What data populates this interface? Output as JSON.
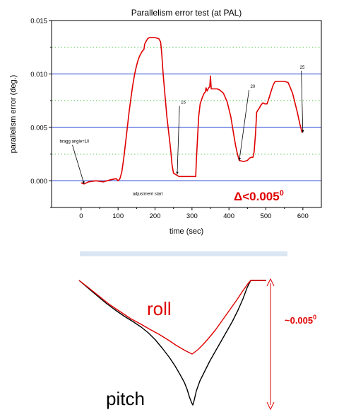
{
  "chart_data": [
    {
      "type": "line",
      "title": "Parallelism error test (at PAL)",
      "xlabel": "time (sec)",
      "ylabel": "parallelism error (deg.)",
      "xlim": [
        -80,
        650
      ],
      "ylim": [
        -0.0025,
        0.015
      ],
      "x_ticks": [
        "0",
        "100",
        "200",
        "300",
        "400",
        "500",
        "600"
      ],
      "y_ticks": [
        "0.000",
        "0.005",
        "0.010",
        "0.015"
      ],
      "grid": {
        "solid_blue_y": [
          0.0,
          0.005,
          0.01
        ],
        "dotted_green_y": [
          0.0025,
          0.0075,
          0.0125
        ]
      },
      "series": [
        {
          "color": "#e00000",
          "points": [
            [
              0,
              -0.0002
            ],
            [
              8,
              -0.0003
            ],
            [
              20,
              -0.0001
            ],
            [
              40,
              0.0
            ],
            [
              60,
              -0.0001
            ],
            [
              80,
              0.0001
            ],
            [
              95,
              0.0002
            ],
            [
              100,
              0.0
            ],
            [
              105,
              0.0002
            ],
            [
              110,
              0.0008
            ],
            [
              115,
              0.002
            ],
            [
              120,
              0.0035
            ],
            [
              125,
              0.005
            ],
            [
              130,
              0.0065
            ],
            [
              135,
              0.0078
            ],
            [
              140,
              0.009
            ],
            [
              145,
              0.01
            ],
            [
              150,
              0.0108
            ],
            [
              155,
              0.0114
            ],
            [
              160,
              0.0118
            ],
            [
              165,
              0.0121
            ],
            [
              170,
              0.0123
            ],
            [
              172,
              0.0128
            ],
            [
              175,
              0.013
            ],
            [
              180,
              0.0133
            ],
            [
              185,
              0.0134
            ],
            [
              190,
              0.0134
            ],
            [
              200,
              0.0134
            ],
            [
              210,
              0.0133
            ],
            [
              215,
              0.013
            ],
            [
              218,
              0.012
            ],
            [
              222,
              0.01
            ],
            [
              227,
              0.008
            ],
            [
              232,
              0.006
            ],
            [
              237,
              0.0045
            ],
            [
              242,
              0.003
            ],
            [
              246,
              0.0015
            ],
            [
              250,
              0.0007
            ],
            [
              255,
              0.0006
            ],
            [
              260,
              0.0005
            ],
            [
              265,
              0.0004
            ],
            [
              290,
              0.0004
            ],
            [
              310,
              0.0004
            ],
            [
              312,
              0.002
            ],
            [
              315,
              0.004
            ],
            [
              318,
              0.006
            ],
            [
              322,
              0.0072
            ],
            [
              328,
              0.0078
            ],
            [
              333,
              0.0082
            ],
            [
              336,
              0.0083
            ],
            [
              338,
              0.0087
            ],
            [
              341,
              0.0084
            ],
            [
              345,
              0.0087
            ],
            [
              348,
              0.0088
            ],
            [
              350,
              0.0098
            ],
            [
              352,
              0.0086
            ],
            [
              358,
              0.0086
            ],
            [
              368,
              0.0086
            ],
            [
              375,
              0.0085
            ],
            [
              385,
              0.0082
            ],
            [
              395,
              0.0074
            ],
            [
              405,
              0.006
            ],
            [
              412,
              0.0045
            ],
            [
              418,
              0.0033
            ],
            [
              423,
              0.0025
            ],
            [
              428,
              0.0019
            ],
            [
              440,
              0.0018
            ],
            [
              450,
              0.0019
            ],
            [
              455,
              0.0021
            ],
            [
              460,
              0.0022
            ],
            [
              465,
              0.0022
            ],
            [
              468,
              0.0027
            ],
            [
              472,
              0.0045
            ],
            [
              475,
              0.0064
            ],
            [
              478,
              0.0066
            ],
            [
              482,
              0.0068
            ],
            [
              487,
              0.0071
            ],
            [
              492,
              0.0073
            ],
            [
              497,
              0.0072
            ],
            [
              503,
              0.0072
            ],
            [
              508,
              0.0077
            ],
            [
              515,
              0.0085
            ],
            [
              520,
              0.009
            ],
            [
              525,
              0.0093
            ],
            [
              530,
              0.0093
            ],
            [
              540,
              0.0093
            ],
            [
              550,
              0.0093
            ],
            [
              560,
              0.0092
            ],
            [
              565,
              0.0088
            ],
            [
              572,
              0.0082
            ],
            [
              578,
              0.0074
            ],
            [
              585,
              0.0064
            ],
            [
              592,
              0.0053
            ],
            [
              598,
              0.0045
            ]
          ]
        }
      ],
      "annotations": [
        {
          "text": "bragg angle=10",
          "x": -58,
          "y": 0.00355,
          "arrow_to": [
            8,
            -0.0003
          ]
        },
        {
          "text": "15",
          "x": 270,
          "y": 0.0072,
          "arrow_to": [
            260,
            0.0006
          ]
        },
        {
          "text": "20",
          "x": 458,
          "y": 0.0087,
          "arrow_to": [
            428,
            0.0019
          ]
        },
        {
          "text": "25",
          "x": 592,
          "y": 0.0105,
          "arrow_to": [
            600,
            0.0045
          ]
        },
        {
          "text": "adjustment start",
          "x": 180,
          "y": -0.00135
        }
      ],
      "callout": {
        "prefix": "Δ<0.005",
        "sup": "0"
      }
    },
    {
      "type": "line",
      "title": "",
      "series": [
        {
          "name": "roll",
          "color": "#e00000"
        },
        {
          "name": "pitch",
          "color": "#000000"
        }
      ],
      "range_label": {
        "text": "~0.005",
        "sup": "0"
      }
    }
  ]
}
